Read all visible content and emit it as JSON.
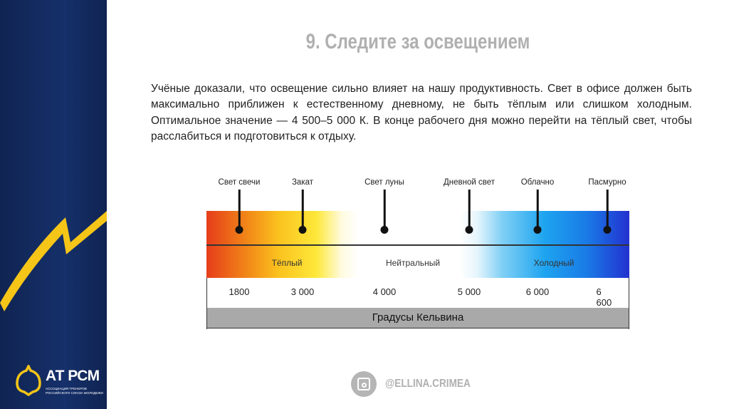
{
  "slide": {
    "title": "9. Следите за освещением",
    "body": "Учёные доказали, что освещение сильно влияет на нашу продуктивность. Свет в офисе должен быть максимально приближен к естественному дневному, не быть тёплым или слишком холодным. Оптимальное значение — 4 500–5 000 К. В конце рабочего дня можно перейти на тёплый свет, чтобы расслабиться и подготовиться к отдыху."
  },
  "logo": {
    "name": "АТ РСМ",
    "line1": "АССОЦИАЦИЯ ТРЕНЕРОВ",
    "line2": "РОССИЙСКОГО СОЮЗА МОЛОДЕЖИ"
  },
  "scale": {
    "markers": [
      {
        "label": "Свет свечи",
        "value": "1800"
      },
      {
        "label": "Закат",
        "value": "3 000"
      },
      {
        "label": "Свет луны",
        "value": "4 000"
      },
      {
        "label": "Дневной свет",
        "value": "5 000"
      },
      {
        "label": "Облачно",
        "value": "6 000"
      },
      {
        "label": "Пасмурно",
        "value": "6 600"
      }
    ],
    "zones": [
      "Тёплый",
      "Нейтральный",
      "Холодный"
    ],
    "unit": "Градусы Кельвина",
    "colors": {
      "warm": "#e63d1a",
      "yellow": "#fde83a",
      "cold": "#2332d0",
      "sidebar": "#13285e",
      "accent": "#f5c518"
    }
  },
  "footer": {
    "handle": "@ELLINA.CRIMEA",
    "icon": "instagram-icon"
  }
}
